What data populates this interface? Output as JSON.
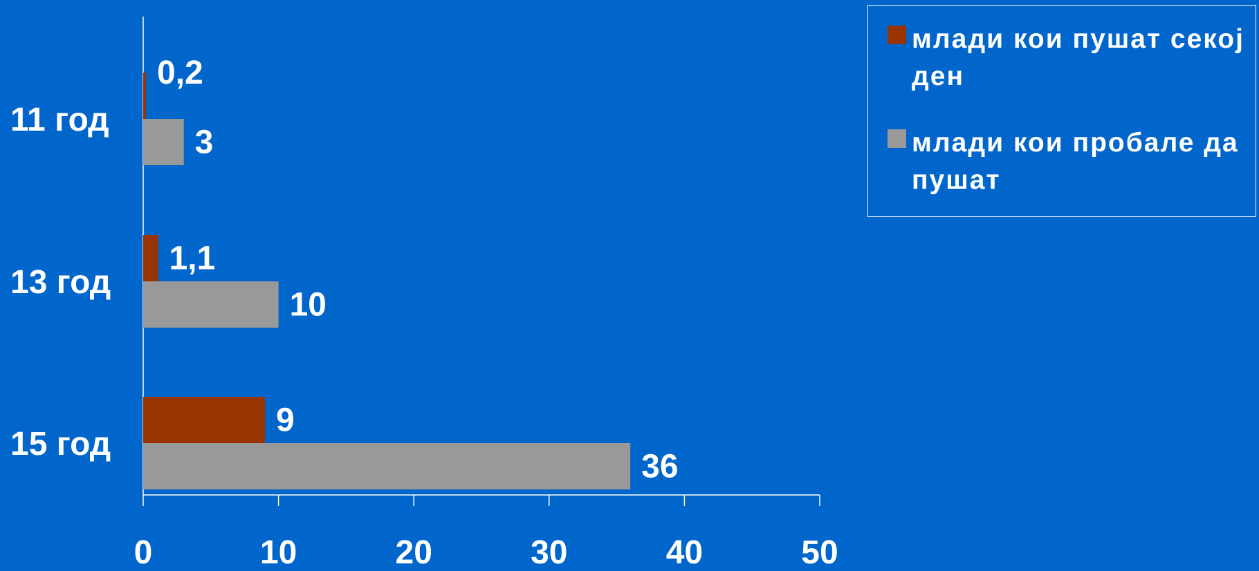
{
  "chart_data": {
    "type": "bar",
    "orientation": "horizontal",
    "categories": [
      "11 год",
      "13 год",
      "15 год"
    ],
    "series": [
      {
        "name": "млади кои пушат секој ден",
        "values": [
          0.2,
          1.1,
          9
        ],
        "labels": [
          "0,2",
          "1,1",
          "9"
        ],
        "color": "#993300"
      },
      {
        "name": "млади кои пробале да пушат",
        "values": [
          3,
          10,
          36
        ],
        "labels": [
          "3",
          "10",
          "36"
        ],
        "color": "#999999"
      }
    ],
    "x_ticks": [
      "0",
      "10",
      "20",
      "30",
      "40",
      "50"
    ],
    "xlim": [
      0,
      50
    ],
    "grid": false,
    "legend_position": "top-right",
    "background_color": "#0066CC"
  }
}
